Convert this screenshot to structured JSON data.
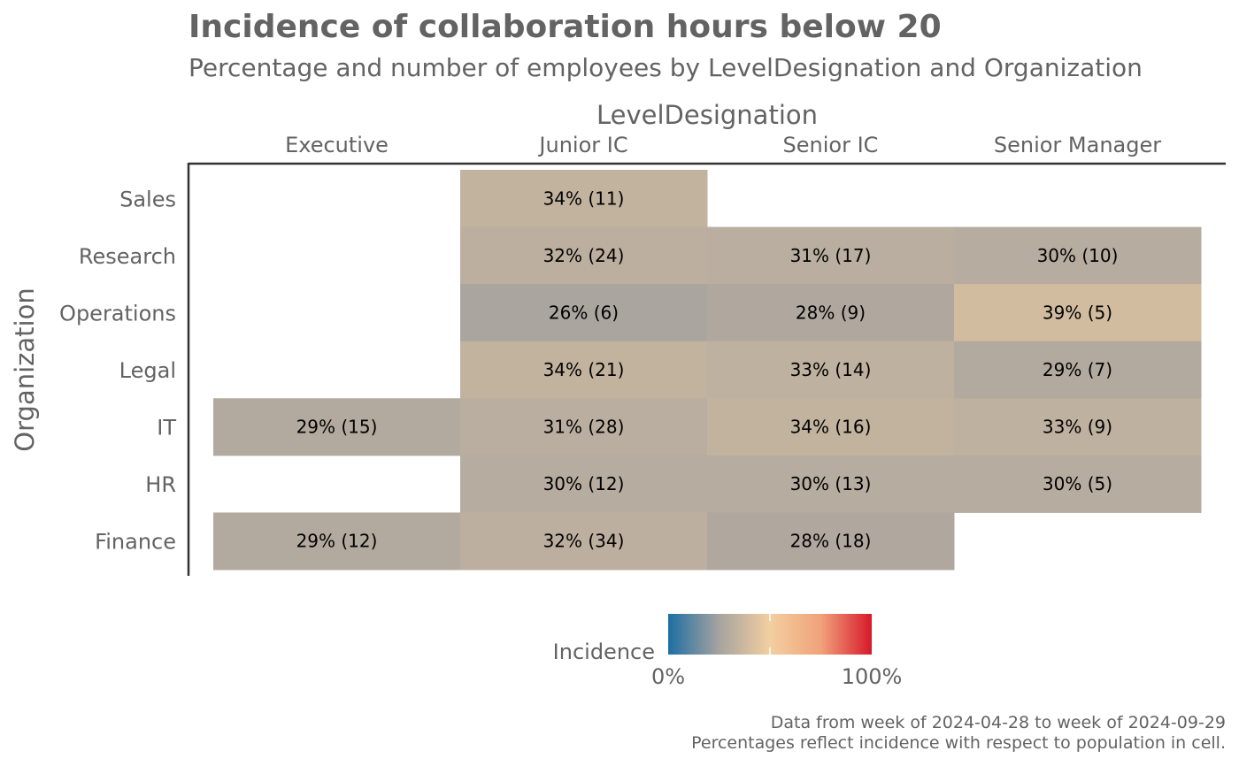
{
  "chart_data": {
    "type": "heatmap",
    "title": "Incidence of collaboration hours below 20",
    "subtitle": "Percentage and number of employees by LevelDesignation and Organization",
    "xlabel": "LevelDesignation",
    "ylabel": "Organization",
    "x_categories": [
      "Executive",
      "Junior IC",
      "Senior IC",
      "Senior Manager"
    ],
    "y_categories": [
      "Sales",
      "Research",
      "Operations",
      "Legal",
      "IT",
      "HR",
      "Finance"
    ],
    "cells": [
      {
        "x": "Junior IC",
        "y": "Sales",
        "value": 0.34,
        "count": 11,
        "label": "34% (11)"
      },
      {
        "x": "Junior IC",
        "y": "Research",
        "value": 0.32,
        "count": 24,
        "label": "32% (24)"
      },
      {
        "x": "Senior IC",
        "y": "Research",
        "value": 0.31,
        "count": 17,
        "label": "31% (17)"
      },
      {
        "x": "Senior Manager",
        "y": "Research",
        "value": 0.3,
        "count": 10,
        "label": "30% (10)"
      },
      {
        "x": "Junior IC",
        "y": "Operations",
        "value": 0.26,
        "count": 6,
        "label": "26% (6)"
      },
      {
        "x": "Senior IC",
        "y": "Operations",
        "value": 0.28,
        "count": 9,
        "label": "28% (9)"
      },
      {
        "x": "Senior Manager",
        "y": "Operations",
        "value": 0.39,
        "count": 5,
        "label": "39% (5)"
      },
      {
        "x": "Junior IC",
        "y": "Legal",
        "value": 0.34,
        "count": 21,
        "label": "34% (21)"
      },
      {
        "x": "Senior IC",
        "y": "Legal",
        "value": 0.33,
        "count": 14,
        "label": "33% (14)"
      },
      {
        "x": "Senior Manager",
        "y": "Legal",
        "value": 0.29,
        "count": 7,
        "label": "29% (7)"
      },
      {
        "x": "Executive",
        "y": "IT",
        "value": 0.29,
        "count": 15,
        "label": "29% (15)"
      },
      {
        "x": "Junior IC",
        "y": "IT",
        "value": 0.31,
        "count": 28,
        "label": "31% (28)"
      },
      {
        "x": "Senior IC",
        "y": "IT",
        "value": 0.34,
        "count": 16,
        "label": "34% (16)"
      },
      {
        "x": "Senior Manager",
        "y": "IT",
        "value": 0.33,
        "count": 9,
        "label": "33% (9)"
      },
      {
        "x": "Junior IC",
        "y": "HR",
        "value": 0.3,
        "count": 12,
        "label": "30% (12)"
      },
      {
        "x": "Senior IC",
        "y": "HR",
        "value": 0.3,
        "count": 13,
        "label": "30% (13)"
      },
      {
        "x": "Senior Manager",
        "y": "HR",
        "value": 0.3,
        "count": 5,
        "label": "30% (5)"
      },
      {
        "x": "Executive",
        "y": "Finance",
        "value": 0.29,
        "count": 12,
        "label": "29% (12)"
      },
      {
        "x": "Junior IC",
        "y": "Finance",
        "value": 0.32,
        "count": 34,
        "label": "32% (34)"
      },
      {
        "x": "Senior IC",
        "y": "Finance",
        "value": 0.28,
        "count": 18,
        "label": "28% (18)"
      }
    ],
    "legend": {
      "title": "Incidence",
      "min": 0,
      "max": 1,
      "min_label": "0%",
      "max_label": "100%",
      "colors": [
        "#1d6fa3",
        "#a7a39f",
        "#f2cfa0",
        "#f0a27a",
        "#d7192a"
      ],
      "placement": "bottom"
    },
    "caption": [
      "Data from week of 2024-04-28 to week of 2024-09-29",
      "Percentages reflect incidence with respect to population in cell."
    ]
  }
}
